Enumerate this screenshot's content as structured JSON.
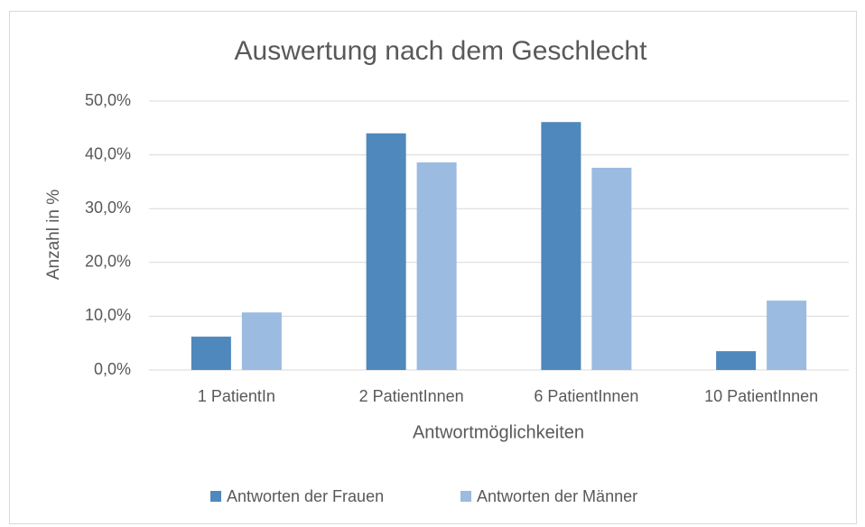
{
  "chart_data": {
    "type": "bar",
    "title": "Auswertung nach dem Geschlecht",
    "x_label": "Antwortmöglichkeiten",
    "y_label": "Anzahl in %",
    "categories": [
      "1 PatientIn",
      "2 PatientInnen",
      "6 PatientInnen",
      "10 PatientInnen"
    ],
    "series": [
      {
        "name": "Antworten der Frauen",
        "color": "#4f88bc",
        "values": [
          6.2,
          44.0,
          46.1,
          3.5
        ]
      },
      {
        "name": "Antworten der Männer",
        "color": "#9bbbe0",
        "values": [
          10.7,
          38.6,
          37.6,
          12.9
        ]
      }
    ],
    "ylim": [
      0,
      50
    ],
    "yticks": [
      {
        "value": 0,
        "label": "0,0%"
      },
      {
        "value": 10,
        "label": "10,0%"
      },
      {
        "value": 20,
        "label": "20,0%"
      },
      {
        "value": 30,
        "label": "30,0%"
      },
      {
        "value": 40,
        "label": "40,0%"
      },
      {
        "value": 50,
        "label": "50,0%"
      }
    ],
    "grid": true,
    "legend": "bottom"
  }
}
